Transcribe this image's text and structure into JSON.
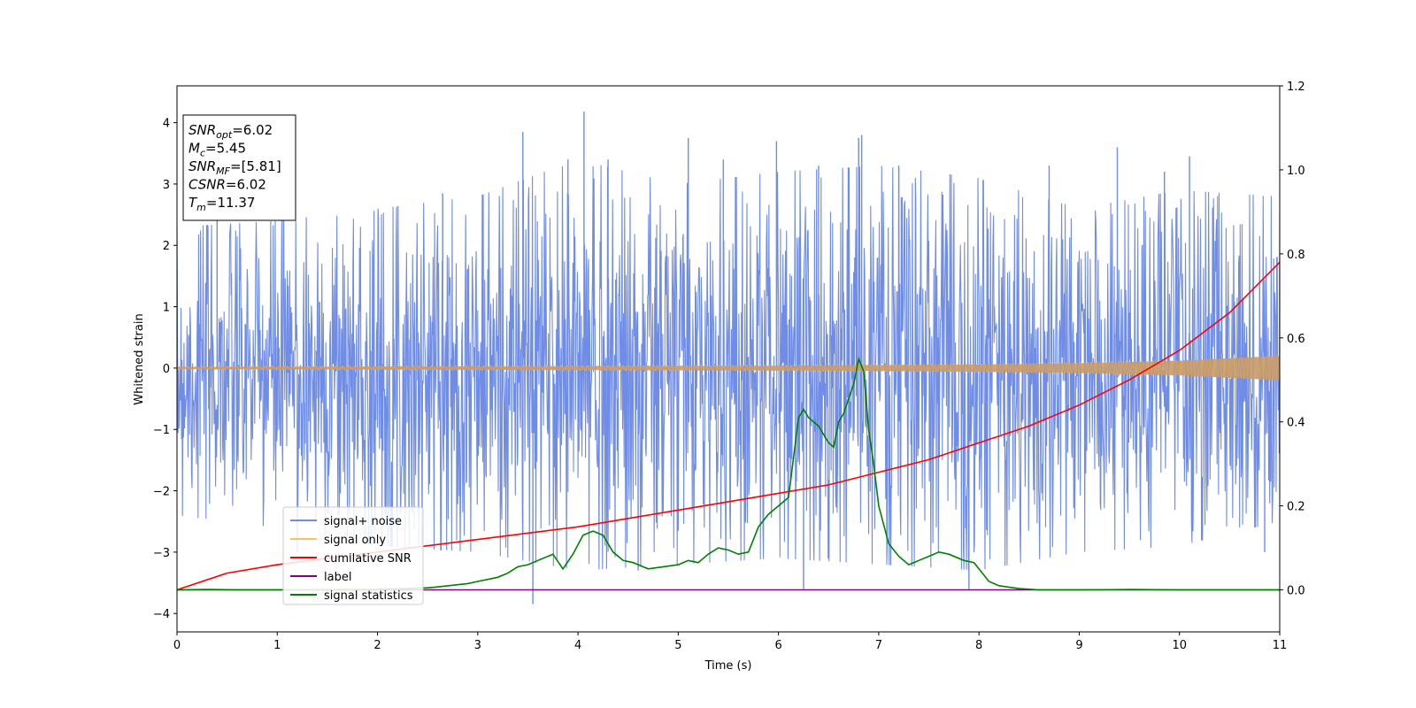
{
  "chart_data": {
    "type": "line",
    "title": "",
    "xlabel": "Time (s)",
    "ylabel": "Whitened strain",
    "ylabel_right": "",
    "xlim": [
      0,
      11
    ],
    "ylim": [
      -4.3,
      4.6
    ],
    "ylim_right": [
      -0.1,
      1.2
    ],
    "xticks": [
      0,
      1,
      2,
      3,
      4,
      5,
      6,
      7,
      8,
      9,
      10,
      11
    ],
    "yticks": [
      -4,
      -3,
      -2,
      -1,
      0,
      1,
      2,
      3,
      4
    ],
    "yticks_right": [
      0.0,
      0.2,
      0.4,
      0.6,
      0.8,
      1.0,
      1.2
    ],
    "grid": false,
    "legend_position": "lower-left",
    "annotation": {
      "lines": [
        {
          "var": "SNR",
          "sub": "opt",
          "value": "=6.02"
        },
        {
          "var": "M",
          "sub": "c",
          "value": "=5.45"
        },
        {
          "var": "SNR",
          "sub": "MF",
          "value": "=[5.81]"
        },
        {
          "var": "CSNR",
          "sub": "",
          "value": "=6.02"
        },
        {
          "var": "T",
          "sub": "m",
          "value": "=11.37"
        }
      ]
    },
    "series": [
      {
        "name": "signal+ noise",
        "axis": "left",
        "color": "#6f8ce6",
        "style": "noise band",
        "envelope": {
          "x": [
            0,
            1,
            2,
            3,
            4,
            5,
            6,
            7,
            8,
            9,
            10,
            11
          ],
          "upper": [
            2.3,
            2.4,
            2.6,
            2.8,
            3.4,
            3.0,
            3.2,
            3.3,
            3.1,
            2.6,
            2.9,
            2.8
          ],
          "lower": [
            -2.4,
            -2.6,
            -2.9,
            -3.0,
            -3.3,
            -3.2,
            -3.1,
            -3.2,
            -3.3,
            -3.0,
            -2.9,
            -2.5
          ]
        },
        "spikes": [
          {
            "x": 0.4,
            "y": 2.7
          },
          {
            "x": 1.2,
            "y": -3.0
          },
          {
            "x": 2.65,
            "y": 2.85
          },
          {
            "x": 3.45,
            "y": 3.85
          },
          {
            "x": 3.55,
            "y": -3.85
          },
          {
            "x": 3.9,
            "y": 3.4
          },
          {
            "x": 4.06,
            "y": 4.18
          },
          {
            "x": 4.3,
            "y": 3.4
          },
          {
            "x": 4.6,
            "y": -3.3
          },
          {
            "x": 5.1,
            "y": 3.75
          },
          {
            "x": 5.45,
            "y": 3.4
          },
          {
            "x": 5.98,
            "y": 3.7
          },
          {
            "x": 6.25,
            "y": -3.6
          },
          {
            "x": 6.4,
            "y": 3.3
          },
          {
            "x": 6.8,
            "y": 3.75
          },
          {
            "x": 6.83,
            "y": 3.8
          },
          {
            "x": 7.2,
            "y": 3.3
          },
          {
            "x": 7.9,
            "y": -3.6
          },
          {
            "x": 8.7,
            "y": 3.3
          },
          {
            "x": 9.38,
            "y": 3.6
          },
          {
            "x": 9.85,
            "y": 3.2
          },
          {
            "x": 10.1,
            "y": 3.45
          },
          {
            "x": 10.85,
            "y": -3.0
          }
        ]
      },
      {
        "name": "signal only",
        "axis": "left",
        "color": "#f5c36b",
        "style": "chirp",
        "amplitude": {
          "x": [
            0,
            3,
            6,
            8,
            9,
            10,
            11
          ],
          "y": [
            0.02,
            0.03,
            0.04,
            0.06,
            0.08,
            0.12,
            0.2
          ]
        }
      },
      {
        "name": "cumilative SNR",
        "axis": "right",
        "color": "#ff0000",
        "style": "line",
        "x": [
          0,
          0.5,
          1,
          2,
          3,
          4,
          5,
          6,
          6.5,
          7,
          7.5,
          8,
          8.5,
          9,
          9.5,
          10,
          10.5,
          11
        ],
        "y": [
          0.0,
          0.04,
          0.06,
          0.09,
          0.12,
          0.15,
          0.19,
          0.23,
          0.25,
          0.28,
          0.31,
          0.35,
          0.39,
          0.44,
          0.5,
          0.57,
          0.66,
          0.78
        ]
      },
      {
        "name": "label",
        "axis": "right",
        "color": "#800080",
        "style": "line",
        "x": [
          0,
          11
        ],
        "y": [
          0.0,
          0.0
        ]
      },
      {
        "name": "signal statistics",
        "axis": "right",
        "color": "#008000",
        "style": "line",
        "x": [
          0,
          0.3,
          0.6,
          1,
          1.5,
          2,
          2.5,
          2.6,
          2.9,
          3.0,
          3.1,
          3.2,
          3.3,
          3.4,
          3.5,
          3.6,
          3.75,
          3.85,
          3.95,
          4.05,
          4.15,
          4.25,
          4.35,
          4.45,
          4.55,
          4.7,
          4.85,
          5.0,
          5.1,
          5.2,
          5.3,
          5.4,
          5.5,
          5.6,
          5.7,
          5.8,
          5.9,
          6.0,
          6.1,
          6.2,
          6.25,
          6.3,
          6.4,
          6.5,
          6.55,
          6.6,
          6.65,
          6.75,
          6.8,
          6.85,
          6.9,
          6.95,
          7.0,
          7.1,
          7.2,
          7.3,
          7.4,
          7.5,
          7.6,
          7.7,
          7.85,
          7.95,
          8.1,
          8.2,
          8.4,
          8.6,
          9,
          9.5,
          10,
          10.5,
          11
        ],
        "y": [
          0.0,
          0.001,
          0.0,
          0.0,
          0.0,
          0.001,
          0.005,
          0.007,
          0.015,
          0.02,
          0.025,
          0.03,
          0.04,
          0.055,
          0.06,
          0.07,
          0.085,
          0.05,
          0.085,
          0.13,
          0.14,
          0.13,
          0.09,
          0.07,
          0.065,
          0.05,
          0.055,
          0.06,
          0.07,
          0.065,
          0.085,
          0.1,
          0.095,
          0.085,
          0.09,
          0.15,
          0.18,
          0.2,
          0.22,
          0.41,
          0.43,
          0.41,
          0.39,
          0.35,
          0.34,
          0.4,
          0.42,
          0.49,
          0.55,
          0.52,
          0.38,
          0.3,
          0.2,
          0.11,
          0.08,
          0.06,
          0.07,
          0.08,
          0.09,
          0.085,
          0.07,
          0.065,
          0.02,
          0.01,
          0.003,
          0.0,
          0.0,
          0.001,
          0.0,
          0.0,
          0.0
        ]
      }
    ]
  }
}
